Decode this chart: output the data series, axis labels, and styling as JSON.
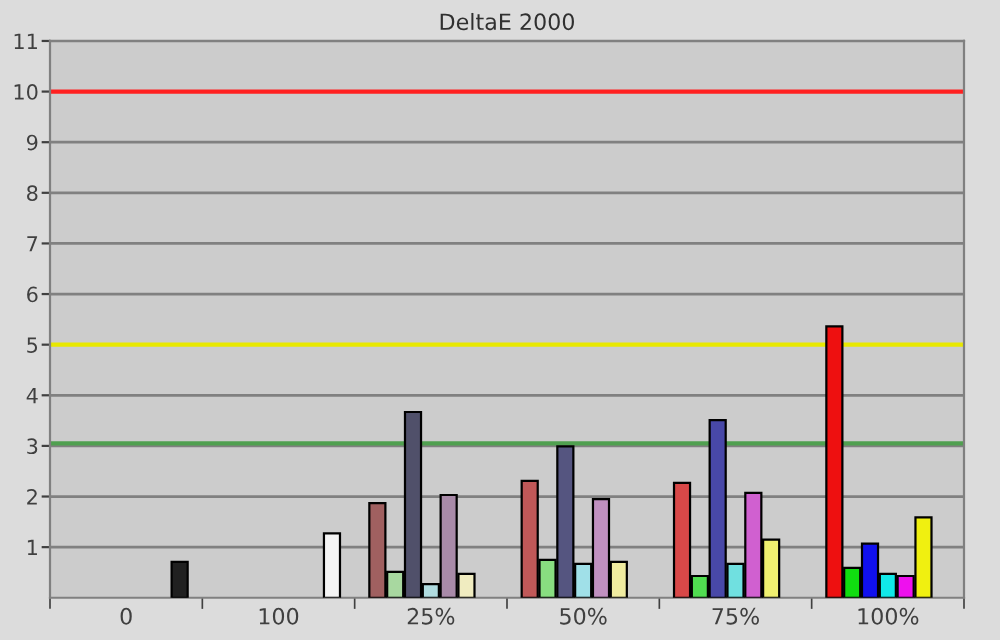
{
  "chart_data": {
    "type": "bar",
    "title": "DeltaE 2000",
    "categories": [
      "0",
      "100",
      "25%",
      "50%",
      "75%",
      "100%"
    ],
    "series": [
      {
        "values": [
          null,
          null,
          1.87,
          2.31,
          2.27,
          5.36
        ],
        "colors": [
          null,
          null,
          "#a06060",
          "#c05858",
          "#d84848",
          "#ee1010"
        ]
      },
      {
        "values": [
          null,
          null,
          0.51,
          0.75,
          0.43,
          0.59
        ],
        "colors": [
          null,
          null,
          "#a8d8a0",
          "#88dd80",
          "#50dd50",
          "#10dd10"
        ]
      },
      {
        "values": [
          null,
          null,
          3.67,
          2.99,
          3.51,
          1.07
        ],
        "colors": [
          null,
          null,
          "#50506a",
          "#555580",
          "#4848a8",
          "#1010ee"
        ]
      },
      {
        "values": [
          null,
          null,
          0.27,
          0.67,
          0.67,
          0.47
        ],
        "colors": [
          null,
          null,
          "#b0dce0",
          "#a0e0e8",
          "#70e0e0",
          "#10e8e8"
        ]
      },
      {
        "values": [
          null,
          null,
          2.03,
          1.95,
          2.07,
          0.43
        ],
        "colors": [
          null,
          null,
          "#a88aa8",
          "#c090c0",
          "#d060d0",
          "#ee10ee"
        ]
      },
      {
        "values": [
          null,
          null,
          0.47,
          0.71,
          1.15,
          1.59
        ],
        "colors": [
          null,
          null,
          "#f0ecc0",
          "#f0eca0",
          "#f0f070",
          "#f0f010"
        ]
      },
      {
        "values": [
          0.71,
          1.27,
          null,
          null,
          null,
          null
        ],
        "colors": [
          "#202020",
          "#f4f4f4",
          null,
          null,
          null,
          null
        ]
      }
    ],
    "ylim": [
      0,
      11
    ],
    "yticks": [
      1,
      2,
      3,
      4,
      5,
      6,
      7,
      8,
      9,
      10,
      11
    ],
    "grid": "y",
    "ref_lines": [
      {
        "axis": "y",
        "value": 10,
        "color": "#ff2020"
      },
      {
        "axis": "y",
        "value": 5,
        "color": "#e8e800"
      },
      {
        "axis": "y",
        "value": 3.05,
        "color": "#50a050"
      }
    ]
  }
}
